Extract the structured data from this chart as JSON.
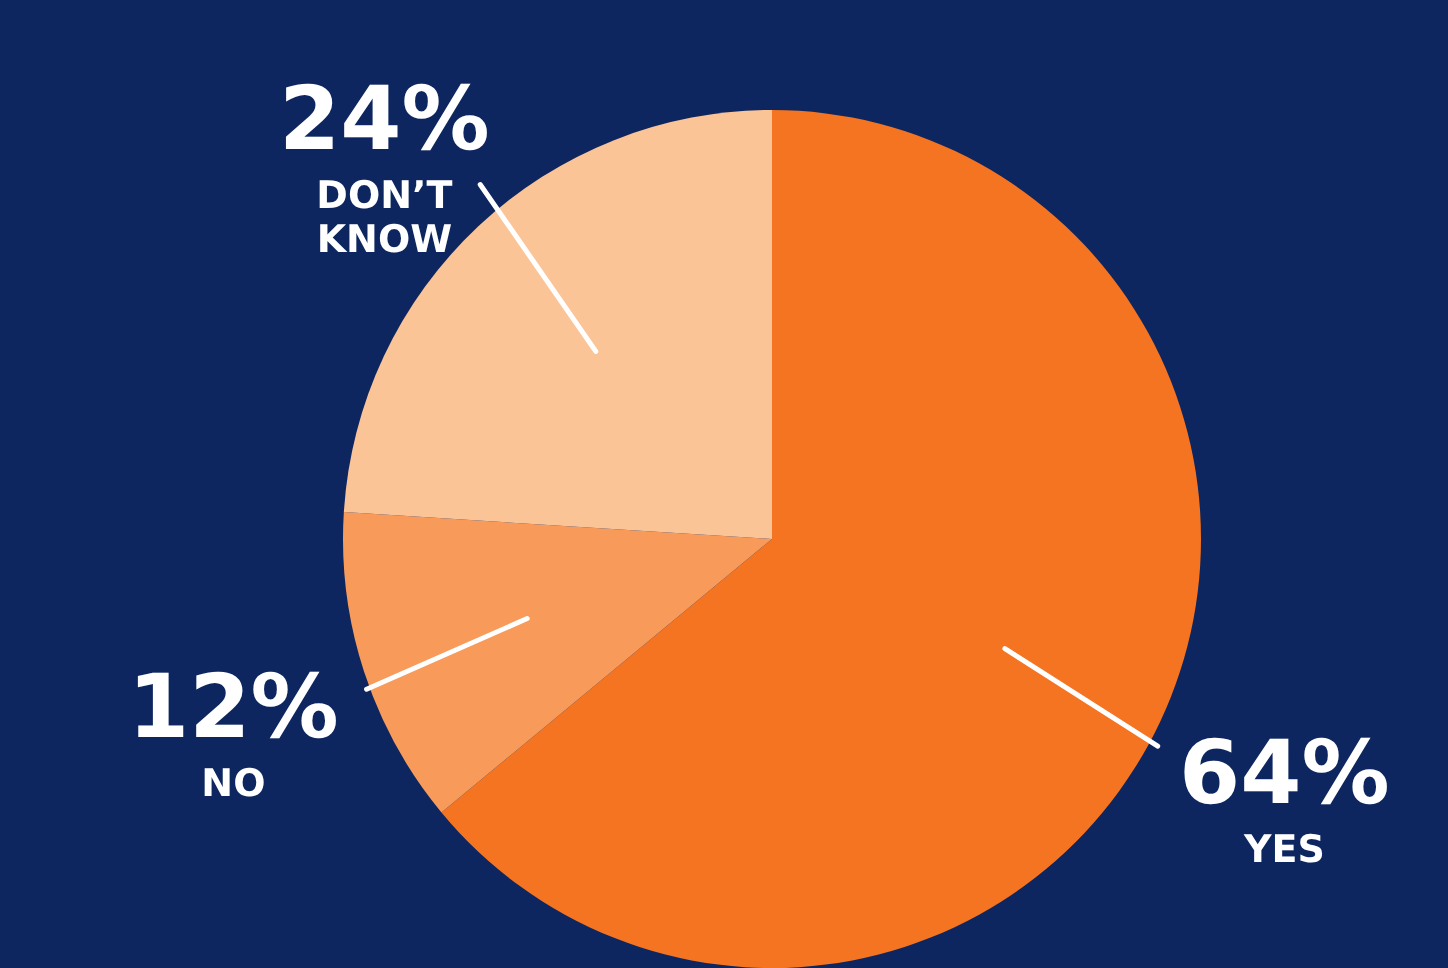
{
  "chart_data": {
    "type": "pie",
    "categories": [
      "YES",
      "NO",
      "DON’T KNOW"
    ],
    "values": [
      64,
      12,
      24
    ],
    "value_labels": [
      "64%",
      "12%",
      "24%"
    ],
    "colors": [
      "#f47421",
      "#f79a5a",
      "#fbc497"
    ],
    "legend": false
  }
}
